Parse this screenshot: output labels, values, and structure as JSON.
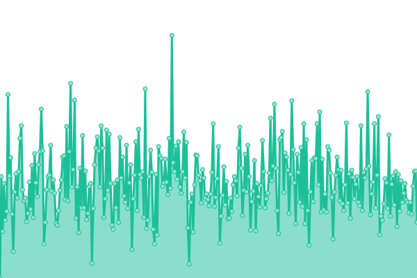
{
  "chart_data": {
    "type": "area",
    "title": "",
    "xlabel": "",
    "ylabel": "",
    "ylim": [
      0,
      400
    ],
    "grid": false,
    "legend": "none",
    "markers": true,
    "colors": {
      "line": "#1dbf99",
      "fill": "#8adfcc",
      "marker_fill": "#8fe3cf",
      "marker_stroke": "#1dbf99"
    },
    "values": [
      0,
      146,
      67,
      136,
      83,
      96,
      264,
      147,
      173,
      92,
      38,
      124,
      150,
      115,
      153,
      201,
      219,
      127,
      111,
      115,
      81,
      93,
      138,
      99,
      162,
      87,
      179,
      137,
      117,
      163,
      182,
      243,
      183,
      49,
      80,
      127,
      146,
      148,
      191,
      125,
      141,
      122,
      79,
      76,
      97,
      126,
      141,
      174,
      176,
      113,
      218,
      111,
      182,
      280,
      131,
      156,
      256,
      86,
      131,
      65,
      158,
      101,
      205,
      101,
      154,
      84,
      93,
      132,
      136,
      21,
      100,
      163,
      187,
      203,
      183,
      131,
      219,
      187,
      87,
      114,
      213,
      126,
      207,
      136,
      76,
      70,
      136,
      101,
      141,
      80,
      202,
      144,
      174,
      118,
      109,
      191,
      100,
      137,
      163,
      41,
      114,
      148,
      196,
      97,
      214,
      149,
      144,
      153,
      87,
      272,
      71,
      83,
      146,
      184,
      152,
      70,
      49,
      149,
      62,
      189,
      176,
      172,
      132,
      137,
      171,
      138,
      120,
      201,
      129,
      349,
      166,
      153,
      190,
      142,
      196,
      131,
      122,
      153,
      210,
      144,
      195,
      72,
      20,
      109,
      121,
      66,
      134,
      177,
      176,
      148,
      140,
      108,
      156,
      144,
      115,
      121,
      113,
      104,
      121,
      152,
      222,
      103,
      116,
      143,
      189,
      50,
      89,
      119,
      160,
      105,
      139,
      85,
      86,
      115,
      96,
      134,
      146,
      140,
      118,
      187,
      217,
      158,
      90,
      126,
      178,
      124,
      191,
      146,
      69,
      110,
      125,
      169,
      68,
      136,
      117,
      102,
      133,
      198,
      153,
      101,
      114,
      122,
      151,
      230,
      140,
      161,
      250,
      158,
      97,
      64,
      199,
      202,
      211,
      123,
      180,
      174,
      155,
      93,
      149,
      255,
      185,
      137,
      78,
      178,
      152,
      109,
      188,
      103,
      222,
      78,
      199,
      97,
      47,
      124,
      169,
      110,
      173,
      172,
      222,
      134,
      239,
      95,
      171,
      98,
      121,
      95,
      189,
      184,
      151,
      116,
      56,
      124,
      148,
      174,
      156,
      111,
      155,
      107,
      97,
      134,
      223,
      108,
      150,
      86,
      155,
      145,
      114,
      135,
      146,
      109,
      104,
      219,
      97,
      152,
      144,
      157,
      268,
      161,
      91,
      121,
      138,
      222,
      101,
      148,
      232,
      62,
      89,
      83,
      107,
      143,
      137,
      100,
      206,
      89,
      135,
      147,
      105,
      153,
      74,
      149,
      96,
      140,
      109,
      122,
      136,
      112,
      109,
      94,
      109,
      92,
      132,
      153,
      154,
      80
    ]
  }
}
